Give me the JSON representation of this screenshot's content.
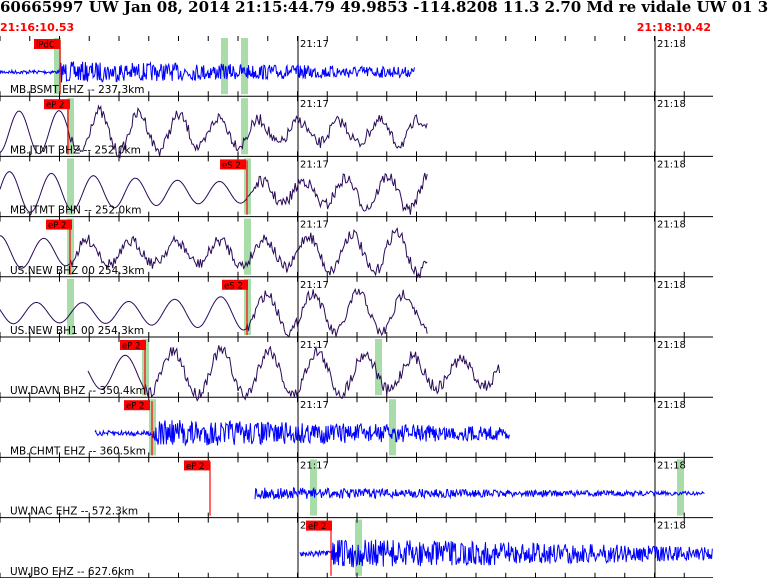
{
  "header": {
    "title": "60665997 UW Jan 08, 2014 21:15:44.79    49.9853 -114.8208 11.3 2.70 Md re vidale UW 01   3",
    "start_time": "21:16:10.53",
    "end_time": "21:18:10.42"
  },
  "minute_labels": [
    "21:17",
    "21:18"
  ],
  "colors": {
    "trace_blue": "#0000ff",
    "trace_purple": "#2a0a5a",
    "pick_red": "#ff0000",
    "window_green": "#a8dca8",
    "grid": "#000000"
  },
  "traces": [
    {
      "channel": "MB.BSMT EHZ -- 237.3km",
      "pick": "iPdC",
      "color": "blue",
      "style": "hf"
    },
    {
      "channel": "MB.JTMT BHZ -- 252.0km",
      "pick": "eP 2",
      "color": "purple",
      "style": "lp"
    },
    {
      "channel": "MB.JTMT BHN -- 252.0km",
      "pick": "eS 2",
      "color": "purple",
      "style": "lp"
    },
    {
      "channel": "US.NEW BHZ 00 254.3km",
      "pick": "eP 2",
      "color": "purple",
      "style": "lp"
    },
    {
      "channel": "US.NEW BH1 00 254.3km",
      "pick": "eS 2",
      "color": "purple",
      "style": "lp"
    },
    {
      "channel": "UW.DAVN BHZ -- 350.4km",
      "pick": "eP 2",
      "color": "purple",
      "style": "lp"
    },
    {
      "channel": "MB.CHMT EHZ -- 360.5km",
      "pick": "eP 2",
      "color": "blue",
      "style": "hf"
    },
    {
      "channel": "UW.NAC EHZ -- 572.3km",
      "pick": "eP 2",
      "color": "blue",
      "style": "hf"
    },
    {
      "channel": "UW.JBO EHZ -- 627.6km",
      "pick": "eP 2",
      "color": "blue",
      "style": "hf"
    }
  ]
}
